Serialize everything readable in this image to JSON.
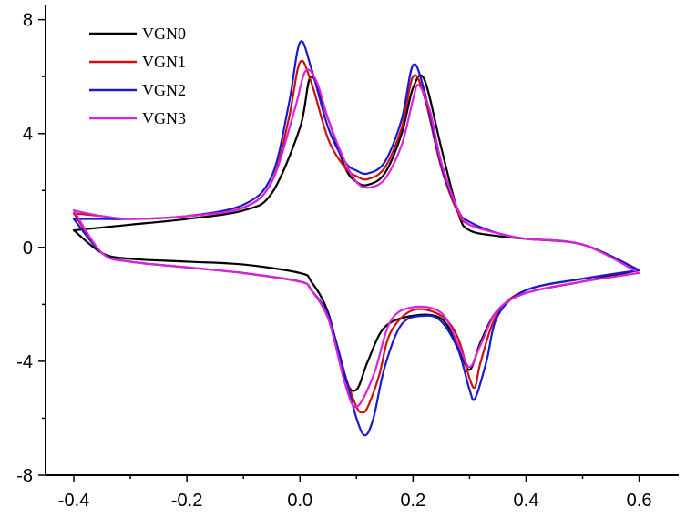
{
  "chart_data": {
    "type": "line",
    "title": "",
    "xlabel": "",
    "ylabel": "",
    "xlim": [
      -0.45,
      0.67
    ],
    "ylim": [
      -8,
      8.5
    ],
    "x_ticks": [
      -0.4,
      -0.2,
      0.0,
      0.2,
      0.4,
      0.6
    ],
    "x_tick_labels": [
      "-0.4",
      "-0.2",
      "0.0",
      "0.2",
      "0.4",
      "0.6"
    ],
    "y_ticks": [
      8,
      4,
      0,
      -4,
      -8
    ],
    "y_tick_labels": [
      "8",
      "4",
      "0",
      "-4",
      "-8"
    ],
    "grid": false,
    "legend_position": "top-left",
    "series": [
      {
        "name": "VGN0",
        "color": "#000000",
        "forward": {
          "x": [
            -0.4,
            -0.35,
            -0.3,
            -0.2,
            -0.1,
            -0.05,
            0.0,
            0.02,
            0.05,
            0.08,
            0.1,
            0.12,
            0.15,
            0.18,
            0.2,
            0.22,
            0.25,
            0.28,
            0.3,
            0.35,
            0.4,
            0.5,
            0.6
          ],
          "y": [
            0.6,
            0.7,
            0.8,
            1.0,
            1.3,
            1.9,
            4.2,
            6.0,
            4.5,
            2.8,
            2.3,
            2.2,
            2.6,
            4.0,
            5.6,
            5.9,
            3.5,
            1.2,
            0.6,
            0.4,
            0.3,
            0.1,
            -0.8
          ]
        },
        "reverse": {
          "x": [
            0.6,
            0.5,
            0.4,
            0.35,
            0.32,
            0.3,
            0.28,
            0.25,
            0.2,
            0.15,
            0.12,
            0.1,
            0.08,
            0.05,
            0.02,
            0.0,
            -0.1,
            -0.2,
            -0.3,
            -0.35,
            -0.4
          ],
          "y": [
            -0.8,
            -1.2,
            -1.6,
            -2.2,
            -3.3,
            -4.3,
            -3.5,
            -2.5,
            -2.4,
            -2.8,
            -4.0,
            -5.0,
            -4.6,
            -2.3,
            -1.2,
            -0.9,
            -0.6,
            -0.5,
            -0.4,
            -0.2,
            0.6
          ]
        }
      },
      {
        "name": "VGN1",
        "color": "#cc1111",
        "forward": {
          "x": [
            -0.4,
            -0.35,
            -0.3,
            -0.2,
            -0.1,
            -0.05,
            -0.02,
            0.0,
            0.02,
            0.05,
            0.08,
            0.1,
            0.12,
            0.15,
            0.18,
            0.2,
            0.22,
            0.25,
            0.28,
            0.3,
            0.35,
            0.4,
            0.5,
            0.6
          ],
          "y": [
            1.2,
            1.1,
            1.0,
            1.1,
            1.4,
            2.3,
            4.5,
            6.5,
            5.8,
            3.8,
            2.8,
            2.5,
            2.4,
            2.8,
            4.2,
            6.0,
            5.3,
            2.8,
            1.2,
            0.8,
            0.5,
            0.3,
            0.1,
            -0.8
          ]
        },
        "reverse": {
          "x": [
            0.6,
            0.5,
            0.4,
            0.35,
            0.32,
            0.31,
            0.3,
            0.28,
            0.25,
            0.2,
            0.16,
            0.14,
            0.12,
            0.11,
            0.1,
            0.08,
            0.05,
            0.02,
            0.0,
            -0.1,
            -0.2,
            -0.3,
            -0.35,
            -0.4
          ],
          "y": [
            -0.8,
            -1.1,
            -1.5,
            -2.3,
            -4.0,
            -4.9,
            -4.6,
            -3.2,
            -2.4,
            -2.2,
            -3.0,
            -4.5,
            -5.6,
            -5.8,
            -5.6,
            -4.5,
            -2.5,
            -1.5,
            -1.2,
            -0.9,
            -0.7,
            -0.5,
            -0.2,
            1.2
          ]
        }
      },
      {
        "name": "VGN2",
        "color": "#1a1acc",
        "forward": {
          "x": [
            -0.4,
            -0.35,
            -0.3,
            -0.2,
            -0.1,
            -0.05,
            -0.02,
            0.0,
            0.02,
            0.05,
            0.08,
            0.1,
            0.12,
            0.15,
            0.18,
            0.2,
            0.22,
            0.25,
            0.28,
            0.3,
            0.35,
            0.4,
            0.5,
            0.6
          ],
          "y": [
            1.0,
            1.0,
            1.0,
            1.1,
            1.5,
            2.5,
            5.0,
            7.2,
            6.3,
            4.2,
            3.0,
            2.7,
            2.6,
            3.0,
            4.5,
            6.4,
            5.5,
            2.9,
            1.3,
            0.9,
            0.5,
            0.3,
            0.1,
            -0.8
          ]
        },
        "reverse": {
          "x": [
            0.6,
            0.5,
            0.4,
            0.35,
            0.33,
            0.31,
            0.3,
            0.28,
            0.25,
            0.22,
            0.18,
            0.15,
            0.13,
            0.115,
            0.1,
            0.08,
            0.05,
            0.02,
            0.0,
            -0.1,
            -0.2,
            -0.3,
            -0.35,
            -0.4
          ],
          "y": [
            -0.8,
            -1.1,
            -1.5,
            -2.4,
            -4.0,
            -5.3,
            -5.0,
            -3.6,
            -2.6,
            -2.4,
            -2.7,
            -4.2,
            -6.0,
            -6.6,
            -6.0,
            -4.5,
            -2.4,
            -1.5,
            -1.2,
            -0.9,
            -0.7,
            -0.5,
            -0.2,
            1.0
          ]
        }
      },
      {
        "name": "VGN3",
        "color": "#dd22dd",
        "forward": {
          "x": [
            -0.4,
            -0.35,
            -0.3,
            -0.2,
            -0.1,
            -0.05,
            -0.01,
            0.01,
            0.03,
            0.05,
            0.08,
            0.1,
            0.12,
            0.15,
            0.18,
            0.2,
            0.21,
            0.23,
            0.25,
            0.28,
            0.3,
            0.35,
            0.4,
            0.5,
            0.6
          ],
          "y": [
            1.3,
            1.1,
            1.0,
            1.1,
            1.4,
            2.3,
            4.8,
            6.2,
            5.8,
            4.5,
            3.0,
            2.3,
            2.1,
            2.4,
            3.6,
            5.2,
            5.7,
            4.8,
            3.0,
            1.3,
            0.8,
            0.5,
            0.3,
            0.1,
            -0.9
          ]
        },
        "reverse": {
          "x": [
            0.6,
            0.5,
            0.4,
            0.35,
            0.32,
            0.3,
            0.28,
            0.25,
            0.2,
            0.16,
            0.13,
            0.1,
            0.08,
            0.05,
            0.02,
            0.0,
            -0.1,
            -0.2,
            -0.3,
            -0.35,
            -0.4
          ],
          "y": [
            -0.9,
            -1.2,
            -1.6,
            -2.2,
            -3.4,
            -4.2,
            -3.4,
            -2.3,
            -2.1,
            -2.6,
            -4.5,
            -5.6,
            -4.8,
            -2.5,
            -1.5,
            -1.2,
            -0.9,
            -0.7,
            -0.5,
            -0.2,
            1.3
          ]
        }
      }
    ]
  }
}
